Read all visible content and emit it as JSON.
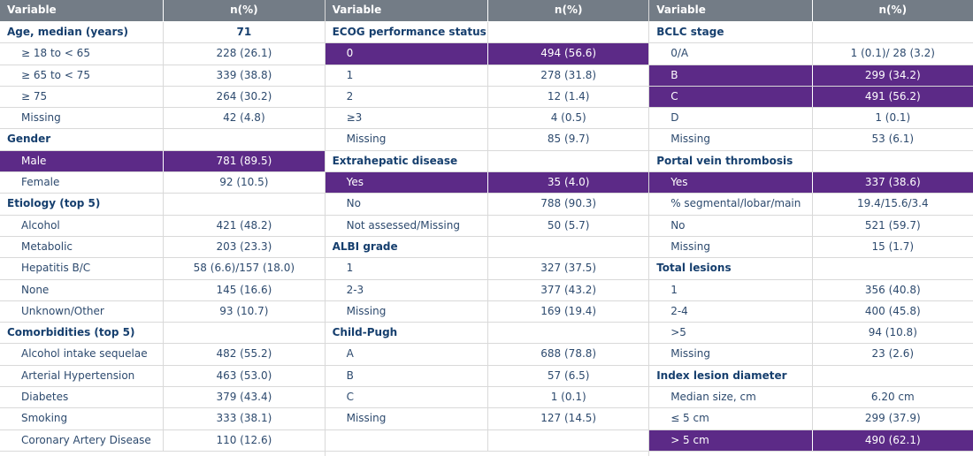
{
  "columns": [
    {
      "header": [
        "Variable",
        "n(%)"
      ],
      "rows": [
        {
          "label": "Age, median (years)",
          "value": "71",
          "style": "section"
        },
        {
          "label": "≥ 18 to < 65",
          "value": "228 (26.1)",
          "style": "item"
        },
        {
          "label": "≥ 65 to < 75",
          "value": "339 (38.8)",
          "style": "item"
        },
        {
          "label": "≥ 75",
          "value": "264 (30.2)",
          "style": "item"
        },
        {
          "label": "Missing",
          "value": "42 (4.8)",
          "style": "item"
        },
        {
          "label": "Gender",
          "style": "section"
        },
        {
          "label": "Male",
          "value": "781 (89.5)",
          "style": "highlight"
        },
        {
          "label": "Female",
          "value": "92 (10.5)",
          "style": "item"
        },
        {
          "label": "Etiology (top 5)",
          "style": "section"
        },
        {
          "label": "Alcohol",
          "value": "421 (48.2)",
          "style": "item"
        },
        {
          "label": "Metabolic",
          "value": "203 (23.3)",
          "style": "item"
        },
        {
          "label": "Hepatitis B/C",
          "value": "58 (6.6)/157 (18.0)",
          "style": "item"
        },
        {
          "label": "None",
          "value": "145 (16.6)",
          "style": "item"
        },
        {
          "label": "Unknown/Other",
          "value": "93 (10.7)",
          "style": "item"
        },
        {
          "label": "Comorbidities (top 5)",
          "style": "section"
        },
        {
          "label": "Alcohol intake sequelae",
          "value": "482 (55.2)",
          "style": "item"
        },
        {
          "label": "Arterial Hypertension",
          "value": "463 (53.0)",
          "style": "item"
        },
        {
          "label": "Diabetes",
          "value": "379 (43.4)",
          "style": "item"
        },
        {
          "label": "Smoking",
          "value": "333 (38.1)",
          "style": "item"
        },
        {
          "label": "Coronary Artery Disease",
          "value": "110 (12.6)",
          "style": "item"
        }
      ]
    },
    {
      "header": [
        "Variable",
        "n(%)"
      ],
      "rows": [
        {
          "label": "ECOG performance status",
          "style": "section"
        },
        {
          "label": "0",
          "value": "494 (56.6)",
          "style": "highlight"
        },
        {
          "label": "1",
          "value": "278 (31.8)",
          "style": "item"
        },
        {
          "label": "2",
          "value": "12 (1.4)",
          "style": "item"
        },
        {
          "label": "≥3",
          "value": "4 (0.5)",
          "style": "item"
        },
        {
          "label": "Missing",
          "value": "85 (9.7)",
          "style": "item"
        },
        {
          "label": "Extrahepatic disease",
          "style": "section"
        },
        {
          "label": "Yes",
          "value": "35 (4.0)",
          "style": "highlight"
        },
        {
          "label": "No",
          "value": "788 (90.3)",
          "style": "item"
        },
        {
          "label": "Not assessed/Missing",
          "value": "50 (5.7)",
          "style": "item"
        },
        {
          "label": "ALBI grade",
          "style": "section"
        },
        {
          "label": "1",
          "value": "327 (37.5)",
          "style": "item"
        },
        {
          "label": "2-3",
          "value": "377 (43.2)",
          "style": "item"
        },
        {
          "label": "Missing",
          "value": "169 (19.4)",
          "style": "item"
        },
        {
          "label": "Child-Pugh",
          "style": "section"
        },
        {
          "label": "A",
          "value": "688 (78.8)",
          "style": "item"
        },
        {
          "label": "B",
          "value": "57 (6.5)",
          "style": "item"
        },
        {
          "label": "C",
          "value": "1 (0.1)",
          "style": "item"
        },
        {
          "label": "Missing",
          "value": "127 (14.5)",
          "style": "item"
        }
      ]
    },
    {
      "header": [
        "Variable",
        "n(%)"
      ],
      "rows": [
        {
          "label": "BCLC stage",
          "style": "section"
        },
        {
          "label": "0/A",
          "value": "1 (0.1)/ 28 (3.2)",
          "style": "item"
        },
        {
          "label": "B",
          "value": "299 (34.2)",
          "style": "highlight"
        },
        {
          "label": "C",
          "value": "491 (56.2)",
          "style": "highlight"
        },
        {
          "label": "D",
          "value": "1 (0.1)",
          "style": "item"
        },
        {
          "label": "Missing",
          "value": "53 (6.1)",
          "style": "item"
        },
        {
          "label": "Portal vein thrombosis",
          "style": "section"
        },
        {
          "label": "Yes",
          "value": "337 (38.6)",
          "style": "highlight"
        },
        {
          "label": "% segmental/lobar/main",
          "value": "19.4/15.6/3.4",
          "style": "item"
        },
        {
          "label": "No",
          "value": "521 (59.7)",
          "style": "item"
        },
        {
          "label": "Missing",
          "value": "15 (1.7)",
          "style": "item"
        },
        {
          "label": "Total lesions",
          "style": "section"
        },
        {
          "label": "1",
          "value": "356 (40.8)",
          "style": "item"
        },
        {
          "label": "2-4",
          "value": "400 (45.8)",
          "style": "item"
        },
        {
          "label": ">5",
          "value": "94 (10.8)",
          "style": "item"
        },
        {
          "label": "Missing",
          "value": "23 (2.6)",
          "style": "item"
        },
        {
          "label": "Index lesion diameter",
          "style": "section"
        },
        {
          "label": "Median size, cm",
          "value": "6.20 cm",
          "style": "item"
        },
        {
          "label": "≤ 5 cm",
          "value": "299 (37.9)",
          "style": "item"
        },
        {
          "label": "> 5 cm",
          "value": "490 (62.1)",
          "style": "highlight"
        }
      ]
    }
  ]
}
